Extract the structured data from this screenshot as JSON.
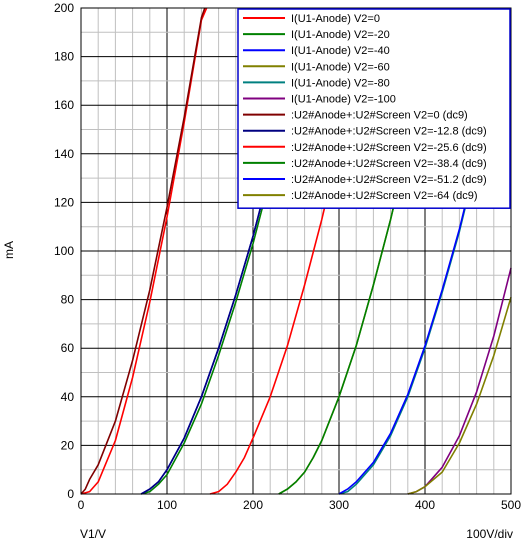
{
  "chart_data": {
    "type": "line",
    "ylabel": "mA",
    "xlabel": "V1/V",
    "scale_note": "100V/div",
    "xlim": [
      0,
      500
    ],
    "ylim": [
      0,
      200
    ],
    "x_ticks": [
      0,
      100,
      200,
      300,
      400,
      500
    ],
    "y_ticks": [
      0,
      20,
      40,
      60,
      80,
      100,
      120,
      140,
      160,
      180,
      200
    ],
    "grid": true,
    "legend_position": "top-right",
    "series": [
      {
        "name": "I(U1-Anode) V2=0",
        "color": "#ff0000",
        "x": [
          0,
          10,
          20,
          40,
          60,
          80,
          100,
          120,
          140,
          146
        ],
        "y": [
          0,
          1,
          5,
          22,
          48,
          79,
          114,
          153,
          195,
          200
        ]
      },
      {
        "name": "I(U1-Anode) V2=-20",
        "color": "#008000",
        "x": [
          70,
          80,
          90,
          100,
          120,
          140,
          160,
          180,
          200,
          225,
          245
        ],
        "y": [
          0,
          1,
          4,
          8,
          21,
          37,
          57,
          79,
          103,
          137,
          168
        ]
      },
      {
        "name": "I(U1-Anode) V2=-40",
        "color": "#0000ff",
        "x": [
          70,
          80,
          90,
          100,
          120,
          140,
          160,
          180,
          200,
          225,
          245
        ],
        "y": [
          0,
          2,
          5,
          10,
          23,
          40,
          60,
          82,
          106,
          140,
          170
        ]
      },
      {
        "name": "I(U1-Anode) V2=-60",
        "color": "#808000",
        "x": [
          230,
          240,
          250,
          260,
          270,
          280,
          300,
          320,
          340,
          360,
          380
        ],
        "y": [
          0,
          2,
          5,
          9,
          15,
          22,
          40,
          61,
          86,
          113,
          143
        ]
      },
      {
        "name": "I(U1-Anode) V2=-80",
        "color": "#008080",
        "x": [
          300,
          310,
          320,
          340,
          360,
          380,
          400,
          420,
          440,
          460,
          470
        ],
        "y": [
          0,
          1,
          4,
          12,
          24,
          40,
          60,
          83,
          108,
          137,
          152
        ]
      },
      {
        "name": "I(U1-Anode) V2=-100",
        "color": "#800080",
        "x": [
          380,
          390,
          400,
          420,
          440,
          460,
          480,
          500
        ],
        "y": [
          0,
          1,
          3,
          11,
          24,
          42,
          65,
          93
        ]
      },
      {
        "name": ":U2#Anode+:U2#Screen V2=0 (dc9)",
        "color": "#800000",
        "x": [
          0,
          5,
          10,
          20,
          40,
          60,
          80,
          100,
          120,
          140,
          144
        ],
        "y": [
          0,
          2,
          6,
          12,
          30,
          55,
          84,
          118,
          155,
          196,
          200
        ]
      },
      {
        "name": ":U2#Anode+:U2#Screen V2=-12.8 (dc9)",
        "color": "#000080",
        "x": [
          70,
          80,
          90,
          100,
          120,
          140,
          160,
          180,
          200,
          225,
          245
        ],
        "y": [
          0,
          2,
          5,
          10,
          23,
          40,
          60,
          82,
          106,
          140,
          170
        ]
      },
      {
        "name": ":U2#Anode+:U2#Screen V2=-25.6 (dc9)",
        "color": "#ff0000",
        "x": [
          150,
          160,
          170,
          180,
          190,
          200,
          220,
          240,
          260,
          280,
          300,
          320
        ],
        "y": [
          0,
          1,
          4,
          9,
          15,
          23,
          40,
          61,
          86,
          113,
          143,
          175
        ]
      },
      {
        "name": ":U2#Anode+:U2#Screen V2=-38.4 (dc9)",
        "color": "#008000",
        "x": [
          230,
          240,
          250,
          260,
          270,
          280,
          300,
          320,
          340,
          360,
          380
        ],
        "y": [
          0,
          2,
          5,
          9,
          15,
          22,
          40,
          61,
          86,
          113,
          143
        ]
      },
      {
        "name": ":U2#Anode+:U2#Screen V2=-51.2 (dc9)",
        "color": "#0000ff",
        "x": [
          300,
          310,
          320,
          340,
          360,
          380,
          400,
          420,
          440,
          460,
          470
        ],
        "y": [
          0,
          2,
          5,
          13,
          25,
          41,
          61,
          84,
          109,
          138,
          153
        ]
      },
      {
        "name": ":U2#Anode+:U2#Screen V2=-64 (dc9)",
        "color": "#808000",
        "x": [
          380,
          390,
          400,
          420,
          440,
          460,
          480,
          500
        ],
        "y": [
          0,
          1,
          3,
          9,
          21,
          37,
          57,
          81
        ]
      }
    ]
  }
}
